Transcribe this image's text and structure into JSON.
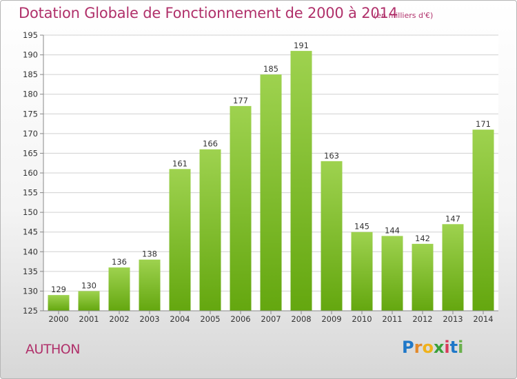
{
  "header": {
    "title": "Dotation Globale de Fonctionnement de 2000 à 2014",
    "unit": "(en milliers d'€)"
  },
  "footer": {
    "commune": "AUTHON",
    "brand": "Proxiti"
  },
  "colors": {
    "title": "#b0306a",
    "bar_light": "#9ed24f",
    "bar_dark": "#64a70f",
    "grid": "#d0d0d0",
    "axis_text": "#333333"
  },
  "chart_data": {
    "type": "bar",
    "title": "Dotation Globale de Fonctionnement de 2000 à 2014",
    "subtitle": "(en milliers d'€)",
    "xlabel": "",
    "ylabel": "",
    "categories": [
      "2000",
      "2001",
      "2002",
      "2003",
      "2004",
      "2005",
      "2006",
      "2007",
      "2008",
      "2009",
      "2010",
      "2011",
      "2012",
      "2013",
      "2014"
    ],
    "values": [
      129,
      130,
      136,
      138,
      161,
      166,
      177,
      185,
      191,
      163,
      145,
      144,
      142,
      147,
      171
    ],
    "ylim": [
      125,
      195
    ],
    "yticks": [
      125,
      130,
      135,
      140,
      145,
      150,
      155,
      160,
      165,
      170,
      175,
      180,
      185,
      190,
      195
    ],
    "grid": true,
    "legend": "none"
  }
}
